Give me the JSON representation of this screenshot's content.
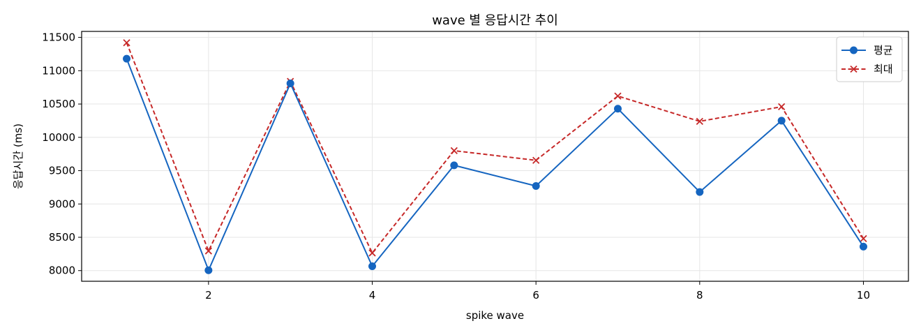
{
  "chart_data": {
    "type": "line",
    "title": "wave 별 응답시간 추이",
    "xlabel": "spike wave",
    "ylabel": "응답시간 (ms)",
    "x": [
      1,
      2,
      3,
      4,
      5,
      6,
      7,
      8,
      9,
      10
    ],
    "xlim": [
      0.45,
      10.55
    ],
    "ylim": [
      7840,
      11590
    ],
    "xticks": [
      2,
      4,
      6,
      8,
      10
    ],
    "yticks": [
      8000,
      8500,
      9000,
      9500,
      10000,
      10500,
      11000,
      11500
    ],
    "grid": true,
    "legend_position": "top-right",
    "series": [
      {
        "name": "평균",
        "color": "#1565c0",
        "line_style": "solid",
        "marker": "circle",
        "values": [
          11180,
          8005,
          10810,
          8065,
          9580,
          9270,
          10430,
          9180,
          10250,
          8360
        ]
      },
      {
        "name": "최대",
        "color": "#c62828",
        "line_style": "dashed",
        "marker": "x",
        "values": [
          11420,
          8295,
          10840,
          8265,
          9800,
          9655,
          10620,
          10240,
          10460,
          8480
        ]
      }
    ]
  }
}
